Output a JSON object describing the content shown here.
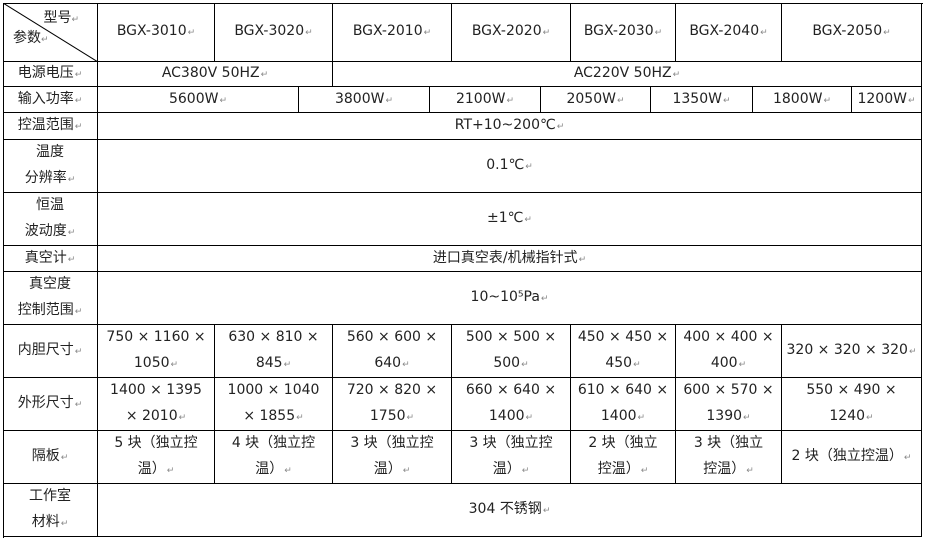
{
  "header": {
    "corner_top": "型号",
    "corner_bottom": "参数",
    "models": [
      "BGX-3010",
      "BGX-3020",
      "BGX-2010",
      "BGX-2020",
      "BGX-2030",
      "BGX-2040",
      "BGX-2050"
    ]
  },
  "rows": [
    {
      "label": "电源电压",
      "values": [
        "AC380V 50HZ",
        "AC220V 50HZ"
      ]
    },
    {
      "label": "输入功率",
      "values": [
        "5600W",
        "3800W",
        "2100W",
        "2050W",
        "1350W",
        "1800W",
        "1200W"
      ]
    },
    {
      "label": "控温范围",
      "values": [
        "RT+10~200℃"
      ]
    },
    {
      "label": "温度\n分辨率",
      "values": [
        "0.1℃"
      ]
    },
    {
      "label": "恒温\n波动度",
      "values": [
        "±1℃"
      ]
    },
    {
      "label": "真空计",
      "values": [
        "进口真空表/机械指针式"
      ]
    },
    {
      "label": "真空度\n控制范围",
      "values": [
        "10~10⁵Pa"
      ]
    },
    {
      "label": "内胆尺寸",
      "values": [
        "750 × 1160 ×\n1050",
        "630 × 810 ×\n845",
        "560 × 600 ×\n640",
        "500 × 500 ×\n500",
        "450 × 450 ×\n450",
        "400 × 400 ×\n400",
        "320 × 320 × 320"
      ]
    },
    {
      "label": "外形尺寸",
      "values": [
        "1400 × 1395\n× 2010",
        "1000 × 1040\n× 1855",
        "720 × 820 ×\n1750",
        "660 × 640 ×\n1400",
        "610 × 640 ×\n1400",
        "600 × 570 ×\n1390",
        "550 × 490 ×\n1240"
      ]
    },
    {
      "label": "隔板",
      "values": [
        "5 块（独立控\n温）",
        "4 块（独立控\n温）",
        "3 块（独立控\n温）",
        "3 块（独立控\n温）",
        "2 块（独立\n控温）",
        "3 块（独立\n控温）",
        "2 块（独立控温）"
      ]
    },
    {
      "label": "工作室\n材料",
      "values": [
        "304 不锈钢"
      ]
    }
  ]
}
